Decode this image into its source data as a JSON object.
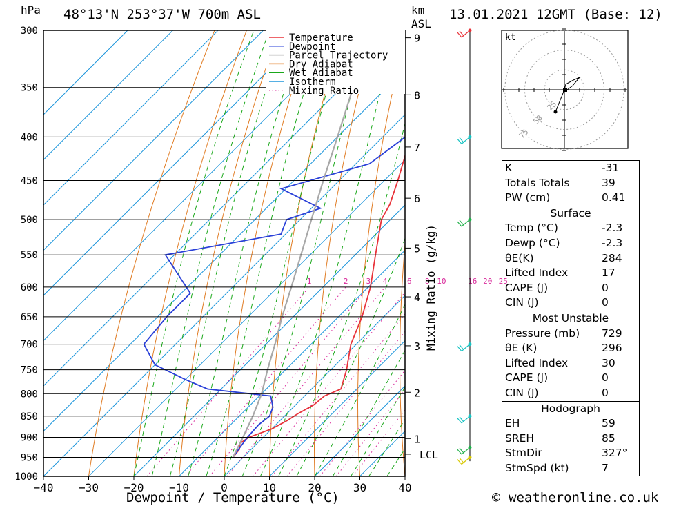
{
  "header": {
    "hpa_label": "hPa",
    "location": "48°13'N  253°37'W  700m  ASL",
    "km_label": "km",
    "asl_label": "ASL",
    "datetime": "13.01.2021  12GMT  (Base: 12)"
  },
  "chart_data": {
    "type": "line",
    "subtype": "skew-t log-p diagram",
    "xlabel": "Dewpoint / Temperature (°C)",
    "ylabel_left": "hPa",
    "ylabel_right": "Mixing Ratio (g/kg)",
    "x_ticks": [
      -40,
      -30,
      -20,
      -10,
      0,
      10,
      20,
      30,
      40
    ],
    "pressure_levels": [
      300,
      350,
      400,
      450,
      500,
      550,
      600,
      650,
      700,
      750,
      800,
      850,
      900,
      950,
      1000
    ],
    "km_ticks": [
      {
        "label": "9",
        "p": 306
      },
      {
        "label": "8",
        "p": 357
      },
      {
        "label": "7",
        "p": 411
      },
      {
        "label": "6",
        "p": 472
      },
      {
        "label": "5",
        "p": 540
      },
      {
        "label": "4",
        "p": 616
      },
      {
        "label": "3",
        "p": 703
      },
      {
        "label": "2",
        "p": 797
      },
      {
        "label": "1",
        "p": 903
      },
      {
        "label": "LCL",
        "p": 942
      }
    ],
    "mixing_ratio_labels": [
      "1",
      "2",
      "3",
      "4",
      "6",
      "8",
      "10",
      "16",
      "20",
      "25"
    ],
    "mixing_ratio_values": [
      1,
      2,
      3,
      4,
      6,
      8,
      10,
      16,
      20,
      25
    ],
    "legend": [
      "Temperature",
      "Dewpoint",
      "Parcel Trajectory",
      "Dry Adiabat",
      "Wet Adiabat",
      "Isotherm",
      "Mixing Ratio"
    ],
    "legend_position": "top-right",
    "colors": {
      "temperature": "#e8333a",
      "dewpoint": "#2a40d8",
      "parcel": "#a8a8a8",
      "dry_adiabat": "#e07b22",
      "wet_adiabat": "#1aa81a",
      "isotherm": "#1e96dc",
      "mixing_ratio": "#d8289a"
    },
    "series": [
      {
        "name": "Temperature",
        "points": [
          [
            950,
            -2.3
          ],
          [
            930,
            -2.6
          ],
          [
            915,
            -3.8
          ],
          [
            900,
            -3.2
          ],
          [
            880,
            0.0
          ],
          [
            860,
            1.6
          ],
          [
            845,
            2.4
          ],
          [
            825,
            4.0
          ],
          [
            805,
            4.4
          ],
          [
            790,
            6.5
          ],
          [
            750,
            3.5
          ],
          [
            700,
            -1.2
          ],
          [
            650,
            -4.8
          ],
          [
            600,
            -9.5
          ],
          [
            550,
            -15.5
          ],
          [
            500,
            -22.0
          ],
          [
            480,
            -23.5
          ],
          [
            450,
            -27.0
          ],
          [
            420,
            -31.0
          ],
          [
            400,
            -35.0
          ],
          [
            370,
            -40.0
          ],
          [
            350,
            -43.5
          ],
          [
            320,
            -48.0
          ],
          [
            300,
            -51.5
          ]
        ]
      },
      {
        "name": "Dewpoint",
        "points": [
          [
            950,
            -2.3
          ],
          [
            930,
            -2.8
          ],
          [
            900,
            -3.5
          ],
          [
            870,
            -3.8
          ],
          [
            850,
            -3.3
          ],
          [
            830,
            -4.5
          ],
          [
            805,
            -7.5
          ],
          [
            790,
            -23.0
          ],
          [
            770,
            -30.0
          ],
          [
            740,
            -40.0
          ],
          [
            700,
            -47.0
          ],
          [
            650,
            -48.0
          ],
          [
            610,
            -48.0
          ],
          [
            550,
            -62.0
          ],
          [
            520,
            -41.0
          ],
          [
            500,
            -43.0
          ],
          [
            485,
            -38.0
          ],
          [
            460,
            -51.0
          ],
          [
            430,
            -37.0
          ],
          [
            400,
            -35.0
          ],
          [
            375,
            -35.0
          ],
          [
            355,
            -35.0
          ],
          [
            335,
            -31.0
          ],
          [
            320,
            -35.0
          ],
          [
            305,
            -40.0
          ],
          [
            300,
            -41.0
          ]
        ]
      },
      {
        "name": "Parcel Trajectory",
        "points": [
          [
            950,
            -2.3
          ],
          [
            900,
            -4.5
          ],
          [
            850,
            -7.0
          ],
          [
            800,
            -10.0
          ],
          [
            750,
            -14.0
          ],
          [
            700,
            -18.0
          ],
          [
            650,
            -22.5
          ],
          [
            600,
            -27.0
          ],
          [
            550,
            -32.0
          ],
          [
            500,
            -37.5
          ],
          [
            450,
            -43.5
          ],
          [
            400,
            -50.0
          ],
          [
            350,
            -57.5
          ],
          [
            300,
            -66.0
          ]
        ]
      }
    ],
    "wind_barbs": [
      {
        "p": 300,
        "flag": "red"
      },
      {
        "p": 400,
        "flag": "cyan"
      },
      {
        "p": 500,
        "flag": "green"
      },
      {
        "p": 700,
        "flag": "cyan"
      },
      {
        "p": 850,
        "flag": "cyan"
      },
      {
        "p": 925,
        "flag": "green"
      },
      {
        "p": 950,
        "flag": "yellow"
      }
    ]
  },
  "hodograph": {
    "unit": "kt",
    "ring_labels": [
      "25",
      "50",
      "75"
    ]
  },
  "indices": {
    "top": [
      {
        "label": "K",
        "value": "-31"
      },
      {
        "label": "Totals Totals",
        "value": "39"
      },
      {
        "label": "PW (cm)",
        "value": "0.41"
      }
    ],
    "surface": {
      "title": "Surface",
      "rows": [
        {
          "label": "Temp (°C)",
          "value": "-2.3"
        },
        {
          "label": "Dewp (°C)",
          "value": "-2.3"
        },
        {
          "label": "θE(K)",
          "value": "284"
        },
        {
          "label": "Lifted Index",
          "value": "17"
        },
        {
          "label": "CAPE (J)",
          "value": "0"
        },
        {
          "label": "CIN (J)",
          "value": "0"
        }
      ]
    },
    "most_unstable": {
      "title": "Most Unstable",
      "rows": [
        {
          "label": "Pressure (mb)",
          "value": "729"
        },
        {
          "label": "θE (K)",
          "value": "296"
        },
        {
          "label": "Lifted Index",
          "value": "30"
        },
        {
          "label": "CAPE (J)",
          "value": "0"
        },
        {
          "label": "CIN (J)",
          "value": "0"
        }
      ]
    },
    "hodograph_box": {
      "title": "Hodograph",
      "rows": [
        {
          "label": "EH",
          "value": "59"
        },
        {
          "label": "SREH",
          "value": "85"
        },
        {
          "label": "StmDir",
          "value": "327°"
        },
        {
          "label": "StmSpd (kt)",
          "value": "7"
        }
      ]
    }
  },
  "footer": {
    "copyright_symbol": "©",
    "site": "weatheronline.co.uk"
  }
}
